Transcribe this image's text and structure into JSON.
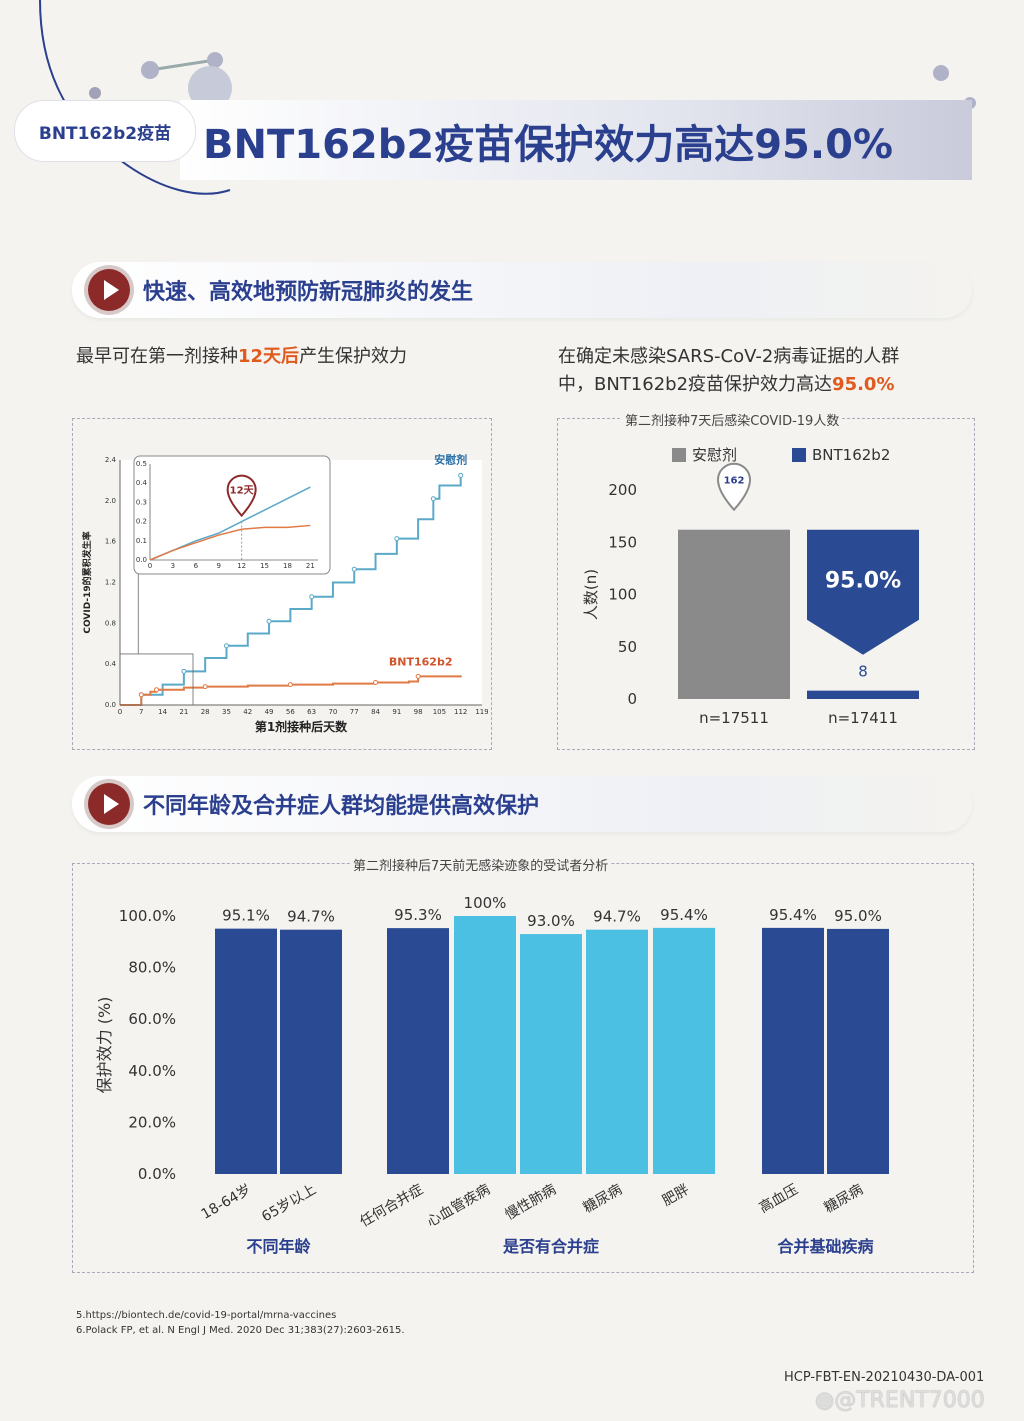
{
  "header": {
    "tag_label": "BNT162b2疫苗",
    "title": "BNT162b2疫苗保护效力高达95.0%"
  },
  "section1": {
    "title": "快速、高效地预防新冠肺炎的发生",
    "left_text_pre": "最早可在第一剂接种",
    "left_text_hl": "12天后",
    "left_text_post": "产生保护效力",
    "right_text_line1": "在确定未感染SARS-CoV-2病毒证据的人群",
    "right_text_line2_pre": "中，BNT162b2疫苗保护效力高达",
    "right_text_line2_hl": "95.0%"
  },
  "section2": {
    "title": "不同年龄及合并症人群均能提供高效保护"
  },
  "chart_data": [
    {
      "type": "line",
      "xlabel": "第1剂接种后天数",
      "ylabel": "COVID-19的累积发生率",
      "x_ticks": [
        0,
        7,
        14,
        21,
        28,
        35,
        42,
        49,
        56,
        63,
        70,
        77,
        84,
        91,
        98,
        105,
        112,
        119
      ],
      "y_ticks": [
        "0.0",
        "0.4",
        "0.8",
        "1.2",
        "1.6",
        "2.0",
        "2.4"
      ],
      "ylim": [
        0,
        2.4
      ],
      "xlim": [
        0,
        119
      ],
      "series": [
        {
          "name": "安慰剂",
          "color": "#5aa9c9",
          "x": [
            0,
            7,
            14,
            21,
            28,
            35,
            42,
            49,
            56,
            63,
            70,
            77,
            84,
            91,
            98,
            103,
            105,
            112
          ],
          "y": [
            0,
            0.1,
            0.2,
            0.33,
            0.46,
            0.58,
            0.7,
            0.82,
            0.94,
            1.06,
            1.2,
            1.33,
            1.48,
            1.63,
            1.82,
            2.02,
            2.15,
            2.25
          ]
        },
        {
          "name": "BNT162b2",
          "color": "#e07a45",
          "x": [
            0,
            7,
            10,
            12,
            21,
            28,
            42,
            56,
            70,
            84,
            95,
            98,
            112
          ],
          "y": [
            0,
            0.1,
            0.13,
            0.15,
            0.17,
            0.18,
            0.19,
            0.2,
            0.21,
            0.22,
            0.23,
            0.28,
            0.29
          ]
        }
      ],
      "inset": {
        "x_ticks": [
          0,
          3,
          6,
          9,
          12,
          15,
          18,
          21
        ],
        "y_ticks": [
          "0.0",
          "0.1",
          "0.2",
          "0.3",
          "0.4",
          "0.5"
        ],
        "ylim": [
          0,
          0.5
        ],
        "xlim": [
          0,
          22
        ],
        "annotation": "12天",
        "placebo": {
          "x": [
            0,
            3,
            6,
            9,
            12,
            15,
            18,
            21
          ],
          "y": [
            0,
            0.05,
            0.1,
            0.14,
            0.2,
            0.26,
            0.32,
            0.38
          ]
        },
        "vaccine": {
          "x": [
            0,
            3,
            6,
            9,
            12,
            15,
            18,
            21
          ],
          "y": [
            0,
            0.05,
            0.09,
            0.13,
            0.16,
            0.17,
            0.17,
            0.18
          ]
        }
      }
    },
    {
      "type": "bar",
      "title": "第二剂接种7天后感染COVID-19人数",
      "ylabel": "人数(n)",
      "ylim": [
        0,
        200
      ],
      "y_ticks": [
        "200",
        "150",
        "100",
        "50",
        "0"
      ],
      "categories": [
        "n=17511",
        "n=17411"
      ],
      "series": [
        {
          "name": "安慰剂",
          "color": "#8a8a8a",
          "values": [
            162,
            null
          ]
        },
        {
          "name": "BNT162b2",
          "color": "#2b4a94",
          "values": [
            null,
            8
          ]
        }
      ],
      "value_labels": [
        "162",
        "8"
      ],
      "annotation": "95.0%"
    },
    {
      "type": "bar",
      "title": "第二剂接种后7天前无感染迹象的受试者分析",
      "ylabel": "保护效力 (%)",
      "ylim": [
        0,
        100
      ],
      "y_ticks": [
        "100.0%",
        "80.0%",
        "60.0%",
        "40.0%",
        "20.0%",
        "0.0%"
      ],
      "categories": [
        "18-64岁",
        "65岁以上",
        "任何合并症",
        "心血管疾病",
        "慢性肺病",
        "糖尿病",
        "肥胖",
        "高血压",
        "糖尿病"
      ],
      "values": [
        95.1,
        94.7,
        95.3,
        100,
        93.0,
        94.7,
        95.4,
        95.4,
        95.0
      ],
      "value_labels": [
        "95.1%",
        "94.7%",
        "95.3%",
        "100%",
        "93.0%",
        "94.7%",
        "95.4%",
        "95.4%",
        "95.0%"
      ],
      "groups": [
        {
          "name": "不同年龄",
          "indices": [
            0,
            1
          ]
        },
        {
          "name": "是否有合并症",
          "indices": [
            2,
            3,
            4,
            5,
            6
          ]
        },
        {
          "name": "合并基础疾病",
          "indices": [
            7,
            8
          ]
        }
      ],
      "colors": {
        "dark": "#2b4a94",
        "light": "#4cc0e3"
      }
    }
  ],
  "references": {
    "ref5": "5.https://biontech.de/covid-19-portal/mrna-vaccines",
    "ref6": "6.Polack FP, et al. N Engl J Med. 2020 Dec 31;383(27):2603-2615."
  },
  "footer": {
    "code": "HCP-FBT-EN-20210430-DA-001",
    "watermark": "@TRENT7000"
  }
}
